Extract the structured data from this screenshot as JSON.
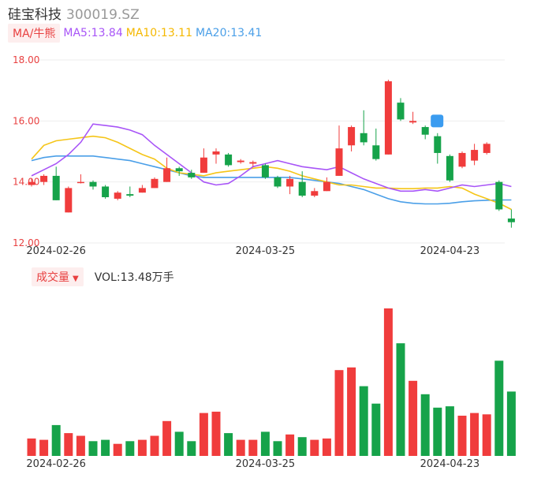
{
  "header": {
    "name": "硅宝科技",
    "code": "300019.SZ"
  },
  "legend": {
    "tag": "MA/牛熊",
    "ma5": "MA5:13.84",
    "ma10": "MA10:13.11",
    "ma20": "MA20:13.41"
  },
  "volume_legend": {
    "tag": "成交量",
    "caret": "▼",
    "text": "VOL:13.48万手"
  },
  "colors": {
    "up": "#f03c3c",
    "down": "#16a34a",
    "ma5": "#a855f7",
    "ma10": "#f5c518",
    "ma20": "#4a9fe8",
    "axis_label": "#e84040"
  },
  "chart_data": {
    "type": "candlestick",
    "ylim": [
      12.0,
      18.0
    ],
    "yticks": [
      "18.00",
      "16.00",
      "14.00",
      "12.00"
    ],
    "xticks": [
      {
        "index": 2,
        "label": "2024-02-26"
      },
      {
        "index": 19,
        "label": "2024-03-25"
      },
      {
        "index": 34,
        "label": "2024-04-23"
      }
    ],
    "candles": [
      {
        "o": 13.9,
        "c": 14.0,
        "h": 14.1,
        "l": 13.85,
        "v": 1.3
      },
      {
        "o": 14.0,
        "c": 14.2,
        "h": 14.25,
        "l": 13.9,
        "v": 1.2
      },
      {
        "o": 14.2,
        "c": 13.4,
        "h": 14.5,
        "l": 13.4,
        "v": 2.3
      },
      {
        "o": 13.0,
        "c": 13.8,
        "h": 13.85,
        "l": 13.0,
        "v": 1.7
      },
      {
        "o": 14.0,
        "c": 14.0,
        "h": 14.25,
        "l": 13.95,
        "v": 1.5
      },
      {
        "o": 14.0,
        "c": 13.85,
        "h": 14.05,
        "l": 13.75,
        "v": 1.1
      },
      {
        "o": 13.85,
        "c": 13.5,
        "h": 13.9,
        "l": 13.45,
        "v": 1.2
      },
      {
        "o": 13.45,
        "c": 13.65,
        "h": 13.7,
        "l": 13.4,
        "v": 0.9
      },
      {
        "o": 13.6,
        "c": 13.55,
        "h": 13.85,
        "l": 13.5,
        "v": 1.1
      },
      {
        "o": 13.65,
        "c": 13.8,
        "h": 13.9,
        "l": 13.65,
        "v": 1.2
      },
      {
        "o": 13.8,
        "c": 14.1,
        "h": 14.15,
        "l": 13.8,
        "v": 1.5
      },
      {
        "o": 14.0,
        "c": 14.45,
        "h": 14.8,
        "l": 14.0,
        "v": 2.6
      },
      {
        "o": 14.45,
        "c": 14.35,
        "h": 14.5,
        "l": 14.2,
        "v": 1.8
      },
      {
        "o": 14.3,
        "c": 14.15,
        "h": 14.4,
        "l": 14.1,
        "v": 1.1
      },
      {
        "o": 14.3,
        "c": 14.8,
        "h": 15.1,
        "l": 14.3,
        "v": 3.2
      },
      {
        "o": 14.9,
        "c": 15.0,
        "h": 15.1,
        "l": 14.6,
        "v": 3.3
      },
      {
        "o": 14.9,
        "c": 14.55,
        "h": 14.95,
        "l": 14.5,
        "v": 1.7
      },
      {
        "o": 14.65,
        "c": 14.7,
        "h": 14.75,
        "l": 14.6,
        "v": 1.2
      },
      {
        "o": 14.6,
        "c": 14.65,
        "h": 14.7,
        "l": 14.5,
        "v": 1.2
      },
      {
        "o": 14.55,
        "c": 14.15,
        "h": 14.6,
        "l": 14.1,
        "v": 1.8
      },
      {
        "o": 14.15,
        "c": 13.85,
        "h": 14.2,
        "l": 13.8,
        "v": 1.1
      },
      {
        "o": 13.85,
        "c": 14.1,
        "h": 14.2,
        "l": 13.6,
        "v": 1.6
      },
      {
        "o": 14.0,
        "c": 13.55,
        "h": 14.35,
        "l": 13.5,
        "v": 1.4
      },
      {
        "o": 13.55,
        "c": 13.7,
        "h": 13.8,
        "l": 13.5,
        "v": 1.2
      },
      {
        "o": 13.7,
        "c": 14.0,
        "h": 14.15,
        "l": 13.7,
        "v": 1.3
      },
      {
        "o": 14.2,
        "c": 15.1,
        "h": 15.85,
        "l": 14.2,
        "v": 6.4
      },
      {
        "o": 15.2,
        "c": 15.8,
        "h": 15.85,
        "l": 15.0,
        "v": 6.6
      },
      {
        "o": 15.6,
        "c": 15.3,
        "h": 16.35,
        "l": 15.2,
        "v": 5.2
      },
      {
        "o": 15.2,
        "c": 14.75,
        "h": 15.75,
        "l": 14.7,
        "v": 3.9
      },
      {
        "o": 14.9,
        "c": 17.3,
        "h": 17.35,
        "l": 14.9,
        "v": 11.0
      },
      {
        "o": 16.6,
        "c": 16.05,
        "h": 16.75,
        "l": 16.0,
        "v": 8.4
      },
      {
        "o": 15.95,
        "c": 16.0,
        "h": 16.3,
        "l": 15.9,
        "v": 5.6
      },
      {
        "o": 15.8,
        "c": 15.55,
        "h": 15.85,
        "l": 15.4,
        "v": 4.6
      },
      {
        "o": 15.5,
        "c": 14.95,
        "h": 15.6,
        "l": 14.6,
        "v": 3.6
      },
      {
        "o": 14.85,
        "c": 14.05,
        "h": 14.9,
        "l": 14.0,
        "v": 3.7
      },
      {
        "o": 14.5,
        "c": 14.95,
        "h": 15.0,
        "l": 14.45,
        "v": 3.0
      },
      {
        "o": 14.7,
        "c": 15.05,
        "h": 15.25,
        "l": 14.55,
        "v": 3.2
      },
      {
        "o": 14.95,
        "c": 15.25,
        "h": 15.3,
        "l": 14.9,
        "v": 3.1
      },
      {
        "o": 14.0,
        "c": 13.1,
        "h": 14.05,
        "l": 13.05,
        "v": 7.1
      },
      {
        "o": 12.8,
        "c": 12.68,
        "h": 13.1,
        "l": 12.5,
        "v": 4.8
      }
    ],
    "ma5": [
      14.2,
      14.4,
      14.6,
      14.9,
      15.3,
      15.9,
      15.85,
      15.8,
      15.7,
      15.55,
      15.2,
      14.9,
      14.6,
      14.3,
      14.0,
      13.9,
      13.95,
      14.2,
      14.5,
      14.6,
      14.7,
      14.6,
      14.5,
      14.45,
      14.4,
      14.5,
      14.3,
      14.1,
      13.95,
      13.8,
      13.7,
      13.7,
      13.75,
      13.7,
      13.8,
      13.9,
      13.85,
      13.9,
      13.95,
      13.85
    ],
    "ma10": [
      14.75,
      15.2,
      15.35,
      15.4,
      15.45,
      15.5,
      15.45,
      15.3,
      15.1,
      14.9,
      14.75,
      14.45,
      14.3,
      14.25,
      14.2,
      14.3,
      14.35,
      14.4,
      14.45,
      14.5,
      14.45,
      14.35,
      14.2,
      14.1,
      14.0,
      13.9,
      13.9,
      13.85,
      13.8,
      13.8,
      13.78,
      13.78,
      13.8,
      13.8,
      13.85,
      13.8,
      13.6,
      13.45,
      13.3,
      13.1
    ],
    "ma20": [
      14.7,
      14.8,
      14.85,
      14.85,
      14.85,
      14.85,
      14.8,
      14.75,
      14.7,
      14.6,
      14.5,
      14.4,
      14.3,
      14.2,
      14.15,
      14.15,
      14.15,
      14.15,
      14.15,
      14.15,
      14.15,
      14.15,
      14.1,
      14.05,
      14.0,
      13.95,
      13.85,
      13.75,
      13.6,
      13.45,
      13.35,
      13.3,
      13.28,
      13.28,
      13.3,
      13.35,
      13.38,
      13.4,
      13.41,
      13.41
    ]
  }
}
